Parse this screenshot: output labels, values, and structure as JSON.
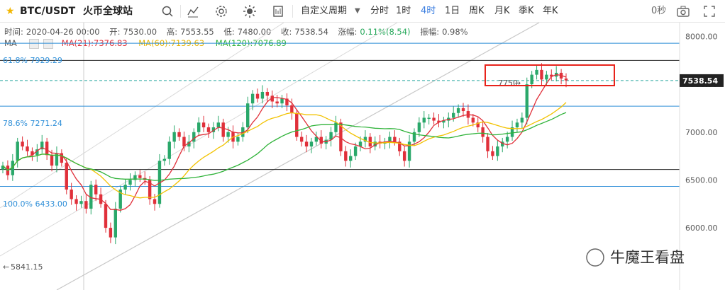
{
  "toolbar": {
    "symbol": "BTC/USDT",
    "exchange": "火币全球站",
    "period_label": "自定义周期",
    "intervals": [
      "分时",
      "1时",
      "4时",
      "1日",
      "周K",
      "月K",
      "季K",
      "年K"
    ],
    "active_interval": "4时",
    "countdown": "0秒"
  },
  "info": {
    "time_label": "时间:",
    "time": "2020-04-26 00:00",
    "open_label": "开:",
    "open": "7530.00",
    "high_label": "高:",
    "high": "7553.55",
    "low_label": "低:",
    "low": "7480.00",
    "close_label": "收:",
    "close": "7538.54",
    "change_label": "涨幅:",
    "change": "0.11%(8.54)",
    "amp_label": "振幅:",
    "amp": "0.98%"
  },
  "ma": {
    "label": "MA",
    "ma21": "MA(21):7376.83",
    "ma60": "MA(60):7139.63",
    "ma120": "MA(120):7076.89"
  },
  "fib": {
    "f618": "61.8% 7929.29",
    "f786": "78.6% 7271.24",
    "f100": "100.0% 6433.00"
  },
  "annotations": {
    "resistance": "7750",
    "low_marker": "5841.15",
    "watermark": "牛魔王看盘"
  },
  "colors": {
    "up": "#2aa86a",
    "down": "#e0303a",
    "fib": "#2f8fd8",
    "ma21": "#e0303a",
    "ma60": "#f2c200",
    "ma120": "#30b33a",
    "highlight": "#e8231b"
  },
  "chart_data": {
    "type": "candlestick",
    "y_ticks": [
      8000,
      7500,
      7000,
      6500,
      6000
    ],
    "y_tick_labels": [
      "8000.00",
      "7500.00",
      "7000.00",
      "6500.00",
      "6000.00"
    ],
    "ylim": [
      5800,
      8340
    ],
    "current_price": 7538.54,
    "current_price_label": "7538.54",
    "horizontal_lines": [
      {
        "kind": "fib",
        "value": 7929.29
      },
      {
        "kind": "resistance",
        "value": 7750
      },
      {
        "kind": "fib",
        "value": 7271.24
      },
      {
        "kind": "support",
        "value": 6610
      },
      {
        "kind": "fib",
        "value": 6433
      }
    ],
    "candles_approx_closes": [
      6650,
      6550,
      6700,
      6900,
      6850,
      6800,
      6760,
      6820,
      6900,
      6760,
      6650,
      6780,
      6680,
      6400,
      6300,
      6250,
      6280,
      6200,
      6450,
      6350,
      6250,
      6000,
      5900,
      6200,
      6400,
      6450,
      6500,
      6550,
      6520,
      6500,
      6300,
      6250,
      6700,
      6720,
      6900,
      7000,
      6950,
      6850,
      6900,
      7000,
      7100,
      7050,
      7000,
      7050,
      7100,
      6950,
      7000,
      6900,
      6950,
      7050,
      7300,
      7400,
      7350,
      7420,
      7380,
      7320,
      7300,
      7350,
      7280,
      7200,
      6950,
      6900,
      6850,
      6900,
      6950,
      6880,
      6920,
      7000,
      7100,
      6800,
      6700,
      6750,
      6850,
      6900,
      6950,
      6850,
      6900,
      6880,
      6900,
      6950,
      6900,
      6800,
      6700,
      6900,
      7000,
      7100,
      7150,
      7150,
      7120,
      7100,
      7120,
      7150,
      7200,
      7250,
      7220,
      7150,
      7100,
      7050,
      6950,
      6800,
      6750,
      6850,
      6900,
      6950,
      7050,
      7100,
      7150,
      7500,
      7600,
      7650,
      7550,
      7600,
      7580,
      7620,
      7560,
      7540
    ]
  }
}
